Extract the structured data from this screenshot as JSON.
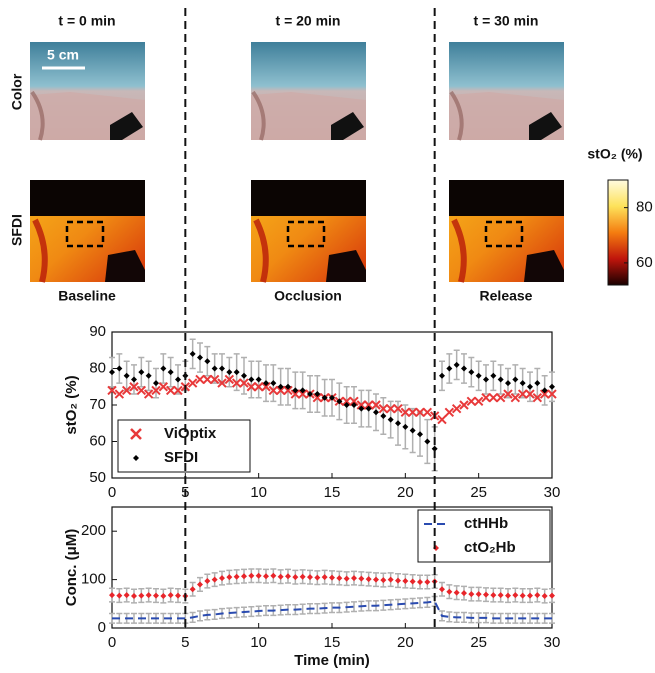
{
  "figure": {
    "time_labels": [
      "t = 0 min",
      "t = 20 min",
      "t = 30 min"
    ],
    "row_labels": [
      "Color",
      "SFDI"
    ],
    "scale_bar": "5 cm",
    "phase_labels": [
      "Baseline",
      "Occlusion",
      "Release"
    ],
    "colorbar": {
      "label": "stO₂ (%)",
      "lim": [
        52,
        90
      ],
      "ticks": [
        60,
        80
      ]
    }
  },
  "chart_data": [
    {
      "type": "scatter",
      "ylabel": "stO₂ (%)",
      "xlim": [
        0,
        30
      ],
      "xticks": [
        0,
        5,
        10,
        15,
        20,
        25,
        30
      ],
      "ylim": [
        50,
        90
      ],
      "yticks": [
        50,
        60,
        70,
        80,
        90
      ],
      "vlines": [
        5,
        22
      ],
      "legend": "lower left",
      "x": [
        0,
        0.5,
        1,
        1.5,
        2,
        2.5,
        3,
        3.5,
        4,
        4.5,
        5,
        5.5,
        6,
        6.5,
        7,
        7.5,
        8,
        8.5,
        9,
        9.5,
        10,
        10.5,
        11,
        11.5,
        12,
        12.5,
        13,
        13.5,
        14,
        14.5,
        15,
        15.5,
        16,
        16.5,
        17,
        17.5,
        18,
        18.5,
        19,
        19.5,
        20,
        20.5,
        21,
        21.5,
        22,
        22.5,
        23,
        23.5,
        24,
        24.5,
        25,
        25.5,
        26,
        26.5,
        27,
        27.5,
        28,
        28.5,
        29,
        29.5,
        30
      ],
      "series": [
        {
          "name": "ViOptix",
          "color": "#e8393a",
          "marker": "x",
          "values": [
            74,
            73,
            74,
            75,
            74,
            73,
            74,
            75,
            74,
            74,
            75,
            76,
            77,
            77,
            77,
            76,
            77,
            76,
            76,
            75,
            75,
            75,
            74,
            74,
            74,
            73,
            73,
            73,
            72,
            72,
            72,
            71,
            71,
            71,
            70,
            70,
            70,
            69,
            69,
            69,
            68,
            68,
            68,
            68,
            67,
            66,
            68,
            69,
            70,
            71,
            71,
            72,
            72,
            72,
            73,
            72,
            73,
            73,
            72,
            73,
            73
          ]
        },
        {
          "name": "SFDI",
          "color": "#000000",
          "marker": "dot",
          "values": [
            79,
            80,
            78,
            77,
            79,
            78,
            76,
            80,
            79,
            77,
            78,
            84,
            83,
            82,
            80,
            80,
            79,
            79,
            78,
            77,
            77,
            76,
            76,
            75,
            75,
            74,
            74,
            73,
            73,
            72,
            72,
            71,
            70,
            70,
            69,
            69,
            68,
            67,
            66,
            65,
            64,
            63,
            62,
            60,
            58,
            78,
            80,
            81,
            80,
            79,
            78,
            77,
            78,
            77,
            76,
            77,
            76,
            75,
            76,
            74,
            75
          ],
          "errors": [
            4,
            4,
            4,
            4,
            4,
            4,
            4,
            4,
            4,
            4,
            4,
            4,
            4,
            4,
            4,
            4,
            4,
            5,
            5,
            5,
            5,
            5,
            5,
            5,
            5,
            5,
            5,
            5,
            5,
            5,
            5,
            5,
            5,
            5,
            5,
            5,
            5,
            5,
            5,
            6,
            6,
            6,
            6,
            6,
            6,
            4,
            4,
            4,
            4,
            4,
            4,
            4,
            4,
            4,
            4,
            4,
            4,
            4,
            4,
            4,
            4
          ]
        }
      ]
    },
    {
      "type": "line",
      "ylabel": "Conc. (μM)",
      "xlabel": "Time (min)",
      "xlim": [
        0,
        30
      ],
      "xticks": [
        0,
        5,
        10,
        15,
        20,
        25,
        30
      ],
      "ylim": [
        0,
        250
      ],
      "yticks": [
        0,
        100,
        200
      ],
      "legend": "upper right",
      "x": [
        0,
        0.5,
        1,
        1.5,
        2,
        2.5,
        3,
        3.5,
        4,
        4.5,
        5,
        5.5,
        6,
        6.5,
        7,
        7.5,
        8,
        8.5,
        9,
        9.5,
        10,
        10.5,
        11,
        11.5,
        12,
        12.5,
        13,
        13.5,
        14,
        14.5,
        15,
        15.5,
        16,
        16.5,
        17,
        17.5,
        18,
        18.5,
        19,
        19.5,
        20,
        20.5,
        21,
        21.5,
        22,
        22.5,
        23,
        23.5,
        24,
        24.5,
        25,
        25.5,
        26,
        26.5,
        27,
        27.5,
        28,
        28.5,
        29,
        29.5,
        30
      ],
      "series": [
        {
          "name": "ctHHb",
          "color": "#2a4bb0",
          "marker": "dashed",
          "error": 10,
          "values": [
            20,
            20,
            20,
            20,
            20,
            20,
            20,
            20,
            20,
            20,
            20,
            22,
            25,
            27,
            28,
            30,
            31,
            32,
            33,
            34,
            35,
            36,
            36,
            37,
            38,
            38,
            39,
            40,
            40,
            41,
            42,
            42,
            43,
            44,
            45,
            46,
            46,
            47,
            48,
            49,
            50,
            51,
            52,
            53,
            55,
            25,
            23,
            22,
            22,
            21,
            21,
            21,
            20,
            20,
            20,
            20,
            20,
            20,
            20,
            20,
            20
          ]
        },
        {
          "name": "ctO₂Hb",
          "color": "#e8252a",
          "marker": "dot",
          "error": 14,
          "values": [
            68,
            67,
            68,
            66,
            67,
            68,
            67,
            66,
            68,
            67,
            66,
            80,
            90,
            97,
            100,
            103,
            105,
            106,
            107,
            108,
            108,
            107,
            108,
            106,
            107,
            105,
            106,
            105,
            104,
            105,
            104,
            103,
            102,
            103,
            102,
            101,
            100,
            99,
            100,
            98,
            97,
            96,
            95,
            95,
            96,
            80,
            75,
            73,
            72,
            70,
            70,
            69,
            68,
            68,
            67,
            68,
            67,
            67,
            68,
            66,
            67
          ]
        }
      ]
    }
  ]
}
